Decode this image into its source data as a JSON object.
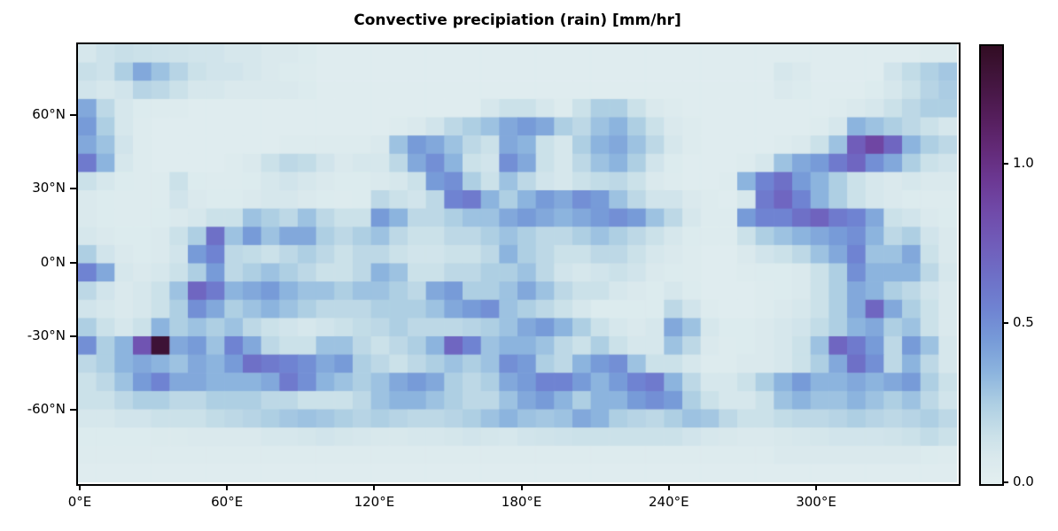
{
  "title": "Convective precipiation (rain) [mm/hr]",
  "axes": {
    "x_ticks": [
      {
        "label": "0°E",
        "lon": 0
      },
      {
        "label": "60°E",
        "lon": 60
      },
      {
        "label": "120°E",
        "lon": 120
      },
      {
        "label": "180°E",
        "lon": 180
      },
      {
        "label": "240°E",
        "lon": 240
      },
      {
        "label": "300°E",
        "lon": 300
      }
    ],
    "y_ticks": [
      {
        "label": "60°N",
        "lat": 60
      },
      {
        "label": "30°N",
        "lat": 30
      },
      {
        "label": "0°N",
        "lat": 0
      },
      {
        "label": "-30°N",
        "lat": -30
      },
      {
        "label": "-60°N",
        "lat": -60
      }
    ]
  },
  "colorbar": {
    "vmin": 0.0,
    "vmax": 1.375,
    "tick_labels": [
      "0.0",
      "0.5",
      "1.0"
    ],
    "tick_values": [
      0.0,
      0.5,
      1.0
    ],
    "colormap_name": "dense (light cyan to dark purple)",
    "colormap_stops": [
      [
        0.0,
        227,
        239,
        240
      ],
      [
        0.08,
        218,
        233,
        237
      ],
      [
        0.15,
        203,
        225,
        233
      ],
      [
        0.25,
        174,
        207,
        227
      ],
      [
        0.35,
        140,
        180,
        222
      ],
      [
        0.45,
        119,
        155,
        216
      ],
      [
        0.55,
        111,
        131,
        210
      ],
      [
        0.65,
        110,
        112,
        199
      ],
      [
        0.75,
        112,
        93,
        186
      ],
      [
        0.85,
        112,
        75,
        170
      ],
      [
        0.95,
        108,
        57,
        148
      ],
      [
        1.05,
        99,
        42,
        120
      ],
      [
        1.15,
        85,
        30,
        92
      ],
      [
        1.25,
        69,
        22,
        66
      ],
      [
        1.375,
        50,
        13,
        35
      ]
    ]
  },
  "chart_data": {
    "type": "heatmap",
    "title": "Convective precipiation (rain) [mm/hr]",
    "xlabel": "",
    "ylabel": "",
    "x_units": "degrees east (0–360)",
    "y_units": "degrees north (90 to -90, top to bottom)",
    "values_units": "mm/hr",
    "values_scale": 0.01,
    "grid_cols": 48,
    "grid_rows": 24,
    "lon_range": [
      0,
      360
    ],
    "lat_range": [
      90,
      -90
    ],
    "vmin": 0.0,
    "vmax": 1.375,
    "values": [
      [
        10,
        14,
        16,
        15,
        14,
        13,
        12,
        12,
        10,
        10,
        8,
        8,
        6,
        4,
        4,
        4,
        4,
        4,
        4,
        4,
        4,
        4,
        4,
        4,
        4,
        4,
        4,
        4,
        4,
        4,
        4,
        4,
        4,
        4,
        4,
        4,
        4,
        4,
        4,
        4,
        4,
        4,
        4,
        4,
        4,
        4,
        5,
        5
      ],
      [
        16,
        14,
        25,
        40,
        30,
        22,
        15,
        12,
        12,
        10,
        8,
        6,
        5,
        4,
        4,
        4,
        4,
        4,
        4,
        4,
        4,
        4,
        4,
        4,
        4,
        4,
        4,
        4,
        4,
        4,
        4,
        4,
        4,
        4,
        4,
        4,
        4,
        4,
        10,
        8,
        4,
        4,
        4,
        4,
        12,
        18,
        24,
        28
      ],
      [
        12,
        10,
        12,
        22,
        20,
        15,
        10,
        10,
        8,
        8,
        8,
        8,
        6,
        4,
        4,
        4,
        4,
        4,
        4,
        4,
        4,
        4,
        4,
        4,
        4,
        4,
        4,
        4,
        4,
        4,
        4,
        4,
        4,
        4,
        4,
        4,
        4,
        4,
        8,
        6,
        4,
        4,
        4,
        6,
        10,
        15,
        22,
        26
      ],
      [
        40,
        20,
        10,
        6,
        5,
        5,
        4,
        4,
        4,
        4,
        4,
        4,
        4,
        4,
        4,
        4,
        4,
        4,
        4,
        4,
        4,
        4,
        10,
        15,
        15,
        10,
        5,
        15,
        25,
        25,
        15,
        8,
        5,
        4,
        4,
        4,
        4,
        4,
        4,
        4,
        4,
        5,
        8,
        10,
        15,
        20,
        25,
        25
      ],
      [
        45,
        25,
        10,
        5,
        4,
        4,
        4,
        4,
        4,
        4,
        4,
        4,
        4,
        4,
        4,
        4,
        4,
        5,
        8,
        12,
        20,
        25,
        30,
        40,
        45,
        40,
        25,
        20,
        30,
        35,
        25,
        15,
        8,
        5,
        4,
        4,
        4,
        4,
        4,
        4,
        5,
        10,
        35,
        30,
        25,
        20,
        15,
        10
      ],
      [
        40,
        30,
        12,
        5,
        4,
        4,
        4,
        4,
        4,
        4,
        4,
        5,
        5,
        5,
        5,
        5,
        8,
        30,
        45,
        40,
        30,
        20,
        15,
        40,
        35,
        15,
        10,
        25,
        35,
        40,
        30,
        20,
        10,
        5,
        4,
        4,
        4,
        4,
        5,
        8,
        15,
        30,
        75,
        88,
        70,
        35,
        25,
        20
      ],
      [
        60,
        35,
        10,
        5,
        4,
        4,
        4,
        4,
        5,
        8,
        15,
        20,
        18,
        12,
        8,
        10,
        10,
        20,
        40,
        50,
        35,
        15,
        12,
        50,
        40,
        15,
        10,
        20,
        30,
        35,
        25,
        12,
        6,
        4,
        4,
        4,
        5,
        10,
        30,
        40,
        45,
        60,
        70,
        50,
        40,
        25,
        15,
        12
      ],
      [
        15,
        10,
        6,
        5,
        5,
        15,
        6,
        5,
        5,
        6,
        10,
        12,
        10,
        8,
        6,
        6,
        8,
        10,
        15,
        45,
        50,
        25,
        15,
        30,
        20,
        12,
        10,
        15,
        18,
        20,
        15,
        8,
        5,
        4,
        4,
        5,
        35,
        55,
        65,
        45,
        35,
        25,
        15,
        10,
        8,
        10,
        8,
        8
      ],
      [
        8,
        6,
        5,
        5,
        5,
        12,
        8,
        6,
        6,
        8,
        10,
        10,
        8,
        6,
        5,
        6,
        20,
        15,
        12,
        20,
        55,
        60,
        35,
        25,
        35,
        45,
        40,
        50,
        45,
        30,
        20,
        12,
        12,
        8,
        5,
        4,
        10,
        60,
        70,
        55,
        35,
        25,
        15,
        10,
        8,
        6,
        5,
        5
      ],
      [
        8,
        6,
        5,
        5,
        6,
        8,
        10,
        15,
        15,
        30,
        25,
        20,
        30,
        20,
        15,
        15,
        45,
        35,
        20,
        20,
        25,
        30,
        30,
        40,
        45,
        40,
        35,
        40,
        45,
        50,
        45,
        30,
        20,
        10,
        5,
        5,
        45,
        55,
        55,
        65,
        72,
        60,
        55,
        40,
        15,
        12,
        8,
        6
      ],
      [
        10,
        8,
        6,
        6,
        8,
        15,
        25,
        65,
        30,
        45,
        30,
        40,
        40,
        25,
        20,
        25,
        30,
        20,
        15,
        15,
        20,
        20,
        25,
        30,
        25,
        20,
        20,
        25,
        30,
        25,
        20,
        15,
        10,
        6,
        5,
        5,
        15,
        25,
        30,
        35,
        40,
        45,
        50,
        35,
        20,
        25,
        12,
        8
      ],
      [
        25,
        12,
        8,
        6,
        8,
        12,
        45,
        55,
        20,
        18,
        15,
        20,
        25,
        20,
        15,
        20,
        20,
        15,
        12,
        12,
        15,
        15,
        20,
        35,
        25,
        20,
        15,
        15,
        20,
        20,
        15,
        10,
        8,
        5,
        4,
        4,
        8,
        12,
        15,
        20,
        30,
        40,
        55,
        30,
        30,
        40,
        15,
        8
      ],
      [
        55,
        40,
        10,
        8,
        10,
        15,
        25,
        45,
        20,
        25,
        30,
        25,
        20,
        15,
        15,
        20,
        35,
        30,
        15,
        15,
        20,
        20,
        25,
        25,
        30,
        20,
        12,
        10,
        12,
        15,
        12,
        8,
        6,
        5,
        4,
        4,
        5,
        6,
        6,
        8,
        15,
        25,
        50,
        35,
        35,
        35,
        20,
        10
      ],
      [
        20,
        12,
        8,
        10,
        15,
        30,
        70,
        60,
        35,
        40,
        45,
        35,
        30,
        30,
        25,
        30,
        30,
        25,
        20,
        40,
        45,
        25,
        25,
        30,
        40,
        30,
        20,
        15,
        15,
        10,
        8,
        6,
        10,
        6,
        4,
        4,
        4,
        5,
        6,
        8,
        15,
        25,
        40,
        35,
        25,
        20,
        12,
        8
      ],
      [
        12,
        10,
        8,
        10,
        15,
        25,
        50,
        40,
        25,
        30,
        35,
        30,
        25,
        20,
        20,
        20,
        25,
        25,
        25,
        30,
        40,
        45,
        50,
        30,
        25,
        20,
        15,
        10,
        6,
        6,
        6,
        6,
        20,
        12,
        5,
        4,
        4,
        5,
        8,
        10,
        15,
        25,
        40,
        70,
        40,
        25,
        15,
        8
      ],
      [
        25,
        15,
        10,
        15,
        35,
        25,
        30,
        25,
        30,
        20,
        15,
        12,
        10,
        12,
        15,
        18,
        20,
        25,
        20,
        20,
        20,
        22,
        25,
        30,
        40,
        45,
        35,
        25,
        15,
        10,
        8,
        10,
        40,
        30,
        10,
        6,
        6,
        8,
        10,
        12,
        18,
        25,
        35,
        40,
        25,
        30,
        15,
        8
      ],
      [
        50,
        25,
        35,
        80,
        130,
        40,
        45,
        30,
        55,
        40,
        20,
        15,
        15,
        30,
        30,
        20,
        15,
        20,
        25,
        35,
        70,
        55,
        30,
        35,
        35,
        30,
        20,
        15,
        25,
        15,
        10,
        10,
        30,
        20,
        8,
        5,
        6,
        8,
        10,
        15,
        30,
        70,
        60,
        45,
        20,
        45,
        30,
        10
      ],
      [
        20,
        25,
        35,
        40,
        35,
        30,
        40,
        35,
        45,
        65,
        60,
        55,
        50,
        40,
        45,
        25,
        20,
        15,
        20,
        25,
        30,
        25,
        30,
        50,
        45,
        25,
        20,
        35,
        45,
        50,
        30,
        15,
        15,
        10,
        5,
        5,
        8,
        8,
        10,
        15,
        25,
        40,
        65,
        50,
        20,
        35,
        20,
        10
      ],
      [
        15,
        20,
        30,
        45,
        55,
        40,
        40,
        35,
        35,
        35,
        40,
        60,
        50,
        35,
        30,
        25,
        30,
        40,
        45,
        40,
        25,
        20,
        25,
        40,
        45,
        55,
        55,
        45,
        35,
        45,
        55,
        60,
        35,
        20,
        10,
        10,
        15,
        25,
        35,
        45,
        35,
        35,
        40,
        35,
        40,
        45,
        25,
        15
      ],
      [
        15,
        15,
        20,
        25,
        25,
        20,
        20,
        25,
        25,
        25,
        20,
        20,
        15,
        15,
        15,
        20,
        30,
        35,
        35,
        30,
        25,
        20,
        20,
        30,
        40,
        45,
        35,
        25,
        35,
        35,
        45,
        50,
        45,
        25,
        15,
        10,
        10,
        15,
        30,
        35,
        30,
        30,
        35,
        30,
        25,
        30,
        20,
        12
      ],
      [
        10,
        10,
        12,
        12,
        15,
        15,
        15,
        18,
        20,
        22,
        25,
        28,
        30,
        28,
        25,
        22,
        25,
        22,
        20,
        20,
        22,
        25,
        30,
        35,
        30,
        28,
        30,
        40,
        35,
        25,
        22,
        20,
        25,
        30,
        28,
        20,
        15,
        15,
        18,
        20,
        20,
        22,
        25,
        22,
        20,
        22,
        25,
        20
      ],
      [
        6,
        6,
        6,
        6,
        7,
        7,
        8,
        8,
        8,
        8,
        10,
        10,
        11,
        12,
        11,
        10,
        9,
        9,
        10,
        10,
        11,
        12,
        11,
        10,
        12,
        13,
        14,
        15,
        15,
        15,
        15,
        15,
        15,
        12,
        10,
        9,
        8,
        8,
        9,
        10,
        11,
        12,
        12,
        12,
        13,
        15,
        18,
        15
      ],
      [
        5,
        5,
        5,
        5,
        5,
        5,
        5,
        5,
        5,
        5,
        5,
        5,
        5,
        5,
        5,
        5,
        5,
        5,
        5,
        5,
        5,
        5,
        5,
        5,
        5,
        5,
        5,
        5,
        5,
        5,
        5,
        5,
        5,
        5,
        5,
        5,
        5,
        5,
        8,
        8,
        8,
        8,
        8,
        8,
        8,
        8,
        6,
        5
      ],
      [
        4,
        4,
        4,
        4,
        4,
        4,
        4,
        4,
        4,
        4,
        4,
        4,
        4,
        4,
        4,
        4,
        4,
        4,
        4,
        4,
        4,
        4,
        4,
        4,
        4,
        4,
        4,
        4,
        4,
        4,
        4,
        4,
        4,
        4,
        4,
        4,
        4,
        4,
        4,
        4,
        4,
        4,
        4,
        4,
        4,
        4,
        4,
        4
      ]
    ]
  }
}
